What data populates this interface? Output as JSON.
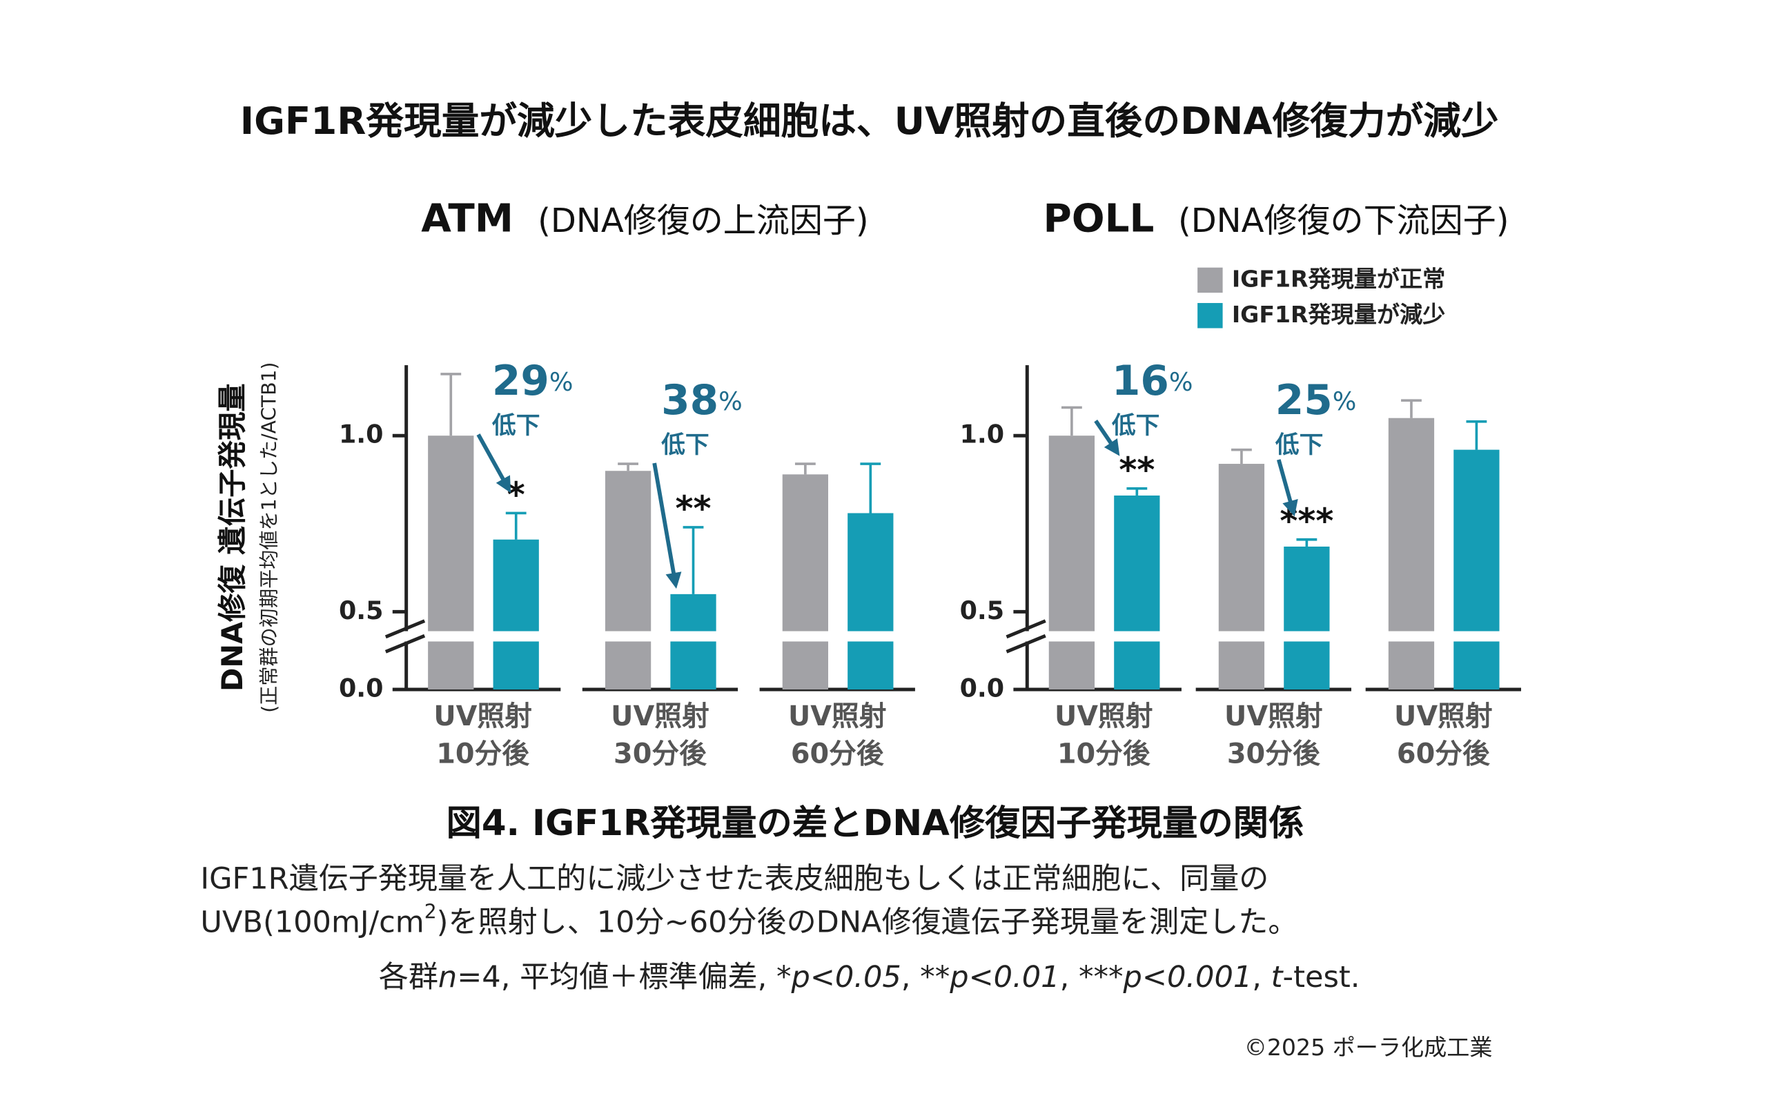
{
  "title": "IGF1R発現量が減少した表皮細胞は、UV照射の直後のDNA修復力が減少",
  "ylabel": "DNA修復 遺伝子発現量",
  "ylabel_sub": "(正常群の初期平均値を1とした/ACTB1)",
  "chart_data": [
    {
      "type": "bar",
      "title": "ATM",
      "subtitle": "(DNA修復の上流因子)",
      "categories": [
        [
          "UV照射",
          "10分後"
        ],
        [
          "UV照射",
          "30分後"
        ],
        [
          "UV照射",
          "60分後"
        ]
      ],
      "series": [
        {
          "color": "#a2a2a6",
          "values": [
            1.0,
            0.9,
            0.89
          ],
          "errors": [
            0.175,
            0.02,
            0.03
          ]
        },
        {
          "color": "#159db5",
          "values": [
            0.705,
            0.55,
            0.78
          ],
          "errors": [
            0.075,
            0.19,
            0.14
          ]
        }
      ],
      "ylim": [
        0,
        1.2
      ],
      "yticks": [
        {
          "value": 0,
          "label": "0.0"
        },
        {
          "value": 0.5,
          "label": "0.5"
        },
        {
          "value": 1,
          "label": "1.0"
        }
      ],
      "axis_break": true,
      "significance": [
        "*",
        "**",
        null
      ],
      "annotations": [
        {
          "category": 0,
          "text": "29%",
          "label": "低下"
        },
        {
          "category": 1,
          "text": "38%",
          "label": "低下"
        }
      ]
    },
    {
      "type": "bar",
      "title": "POLL",
      "subtitle": "(DNA修復の下流因子)",
      "categories": [
        [
          "UV照射",
          "10分後"
        ],
        [
          "UV照射",
          "30分後"
        ],
        [
          "UV照射",
          "60分後"
        ]
      ],
      "series": [
        {
          "name": "IGF1R発現量が正常",
          "color": "#a2a2a6",
          "values": [
            1.0,
            0.92,
            1.05
          ],
          "errors": [
            0.08,
            0.04,
            0.05
          ]
        },
        {
          "name": "IGF1R発現量が減少",
          "color": "#159db5",
          "values": [
            0.83,
            0.685,
            0.96
          ],
          "errors": [
            0.02,
            0.02,
            0.08
          ]
        }
      ],
      "ylim": [
        0,
        1.2
      ],
      "yticks": [
        {
          "value": 0,
          "label": "0.0"
        },
        {
          "value": 0.5,
          "label": "0.5"
        },
        {
          "value": 1,
          "label": "1.0"
        }
      ],
      "axis_break": true,
      "legend": "top-right",
      "significance": [
        "**",
        "***",
        null
      ],
      "annotations": [
        {
          "category": 0,
          "text": "16%",
          "label": "低下"
        },
        {
          "category": 1,
          "text": "25%",
          "label": "低下"
        }
      ]
    }
  ],
  "caption": {
    "title": "図4. IGF1R発現量の差とDNA修復因子発現量の関係",
    "lines": [
      [
        {
          "text": "IGF1R遺伝子発現量を人工的に減少させた表皮細胞もしくは正常細胞に、同量の"
        }
      ],
      [
        {
          "text": "UVB(100mJ/cm"
        },
        {
          "text": "2",
          "style": "sup"
        },
        {
          "text": ")を照射し、10分~60分後のDNA修復遺伝子発現量を測定した。"
        }
      ],
      [
        {
          "text": "各群"
        },
        {
          "text": "n",
          "style": "italic"
        },
        {
          "text": "=4, 平均値＋標準偏差, *"
        },
        {
          "text": "p<0.05",
          "style": "italic"
        },
        {
          "text": ", **"
        },
        {
          "text": "p<0.01",
          "style": "italic"
        },
        {
          "text": ", ***"
        },
        {
          "text": "p<0.001",
          "style": "italic"
        },
        {
          "text": ", "
        },
        {
          "text": "t",
          "style": "italic"
        },
        {
          "text": "-test."
        }
      ]
    ],
    "copyright": "©2025 ポーラ化成工業"
  }
}
